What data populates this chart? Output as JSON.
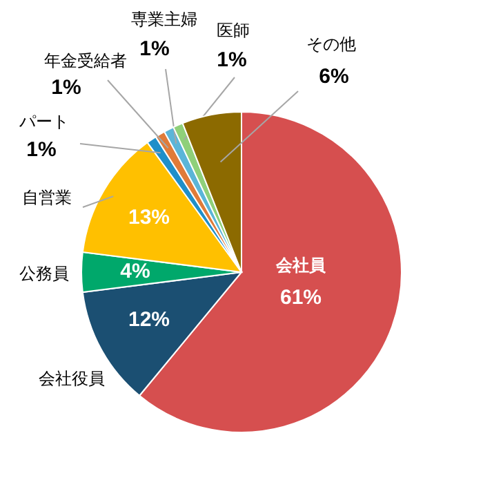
{
  "chart_data": {
    "type": "pie",
    "categories": [
      "会社員",
      "会社役員",
      "公務員",
      "自営業",
      "パート",
      "年金受給者",
      "専業主婦",
      "医師",
      "その他"
    ],
    "values": [
      61,
      12,
      4,
      13,
      1,
      1,
      1,
      1,
      6
    ],
    "colors": [
      "#d64f4f",
      "#1b4f72",
      "#00a86b",
      "#ffc000",
      "#1f8fc9",
      "#e07b39",
      "#5bb5d8",
      "#8fd07a",
      "#8c6a00"
    ],
    "value_labels": [
      "61%",
      "12%",
      "4%",
      "13%",
      "1%",
      "1%",
      "1%",
      "1%",
      "6%"
    ]
  }
}
